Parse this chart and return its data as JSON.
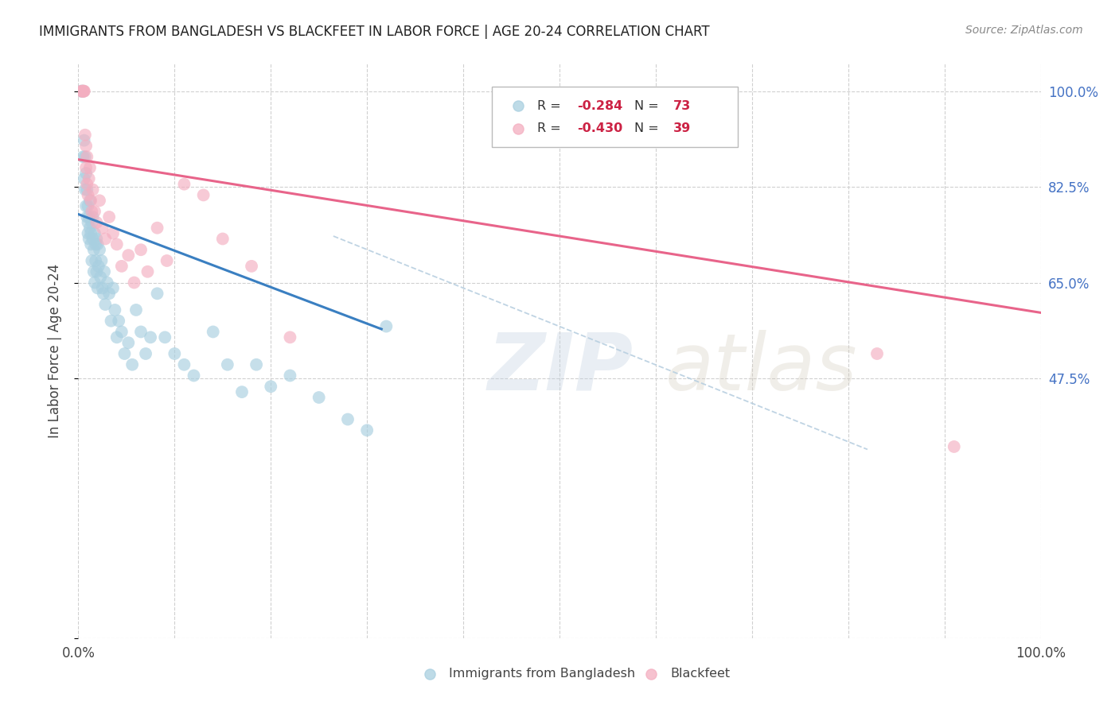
{
  "title": "IMMIGRANTS FROM BANGLADESH VS BLACKFEET IN LABOR FORCE | AGE 20-24 CORRELATION CHART",
  "source": "Source: ZipAtlas.com",
  "ylabel": "In Labor Force | Age 20-24",
  "xlim": [
    0.0,
    1.0
  ],
  "ylim": [
    0.0,
    1.05
  ],
  "ytick_positions": [
    0.0,
    0.475,
    0.65,
    0.825,
    1.0
  ],
  "ytick_labels": [
    "",
    "47.5%",
    "65.0%",
    "82.5%",
    "100.0%"
  ],
  "xtick_positions": [
    0.0,
    0.1,
    0.2,
    0.3,
    0.4,
    0.5,
    0.6,
    0.7,
    0.8,
    0.9,
    1.0
  ],
  "xtick_labels": [
    "0.0%",
    "",
    "",
    "",
    "",
    "",
    "",
    "",
    "",
    "",
    "100.0%"
  ],
  "legend_r1": "-0.284",
  "legend_n1": "73",
  "legend_r2": "-0.430",
  "legend_n2": "39",
  "color_blue": "#a8cfe0",
  "color_pink": "#f4aec0",
  "color_blue_line": "#3a7fc1",
  "color_pink_line": "#e8648a",
  "color_dashed": "#b8cfe0",
  "background_color": "#ffffff",
  "grid_color": "#d0d0d0",
  "blue_line_x0": 0.0,
  "blue_line_y0": 0.775,
  "blue_line_x1": 0.315,
  "blue_line_y1": 0.565,
  "pink_line_x0": 0.0,
  "pink_line_y0": 0.875,
  "pink_line_x1": 1.0,
  "pink_line_y1": 0.595,
  "dash_line_x0": 0.265,
  "dash_line_y0": 0.735,
  "dash_line_x1": 0.82,
  "dash_line_y1": 0.345,
  "bangladesh_x": [
    0.003,
    0.004,
    0.005,
    0.005,
    0.006,
    0.006,
    0.007,
    0.007,
    0.008,
    0.008,
    0.009,
    0.009,
    0.01,
    0.01,
    0.01,
    0.011,
    0.011,
    0.012,
    0.012,
    0.013,
    0.013,
    0.014,
    0.014,
    0.015,
    0.015,
    0.016,
    0.016,
    0.017,
    0.017,
    0.018,
    0.018,
    0.019,
    0.019,
    0.02,
    0.02,
    0.021,
    0.022,
    0.023,
    0.024,
    0.025,
    0.026,
    0.027,
    0.028,
    0.03,
    0.032,
    0.034,
    0.036,
    0.038,
    0.04,
    0.042,
    0.045,
    0.048,
    0.052,
    0.056,
    0.06,
    0.065,
    0.07,
    0.075,
    0.082,
    0.09,
    0.1,
    0.11,
    0.12,
    0.14,
    0.155,
    0.17,
    0.185,
    0.2,
    0.22,
    0.25,
    0.28,
    0.3,
    0.32
  ],
  "bangladesh_y": [
    1.0,
    1.0,
    1.0,
    0.88,
    0.91,
    0.84,
    0.88,
    0.82,
    0.85,
    0.79,
    0.82,
    0.77,
    0.79,
    0.76,
    0.74,
    0.77,
    0.73,
    0.75,
    0.8,
    0.74,
    0.72,
    0.76,
    0.69,
    0.73,
    0.77,
    0.71,
    0.67,
    0.74,
    0.65,
    0.72,
    0.69,
    0.67,
    0.73,
    0.72,
    0.64,
    0.68,
    0.71,
    0.66,
    0.69,
    0.64,
    0.63,
    0.67,
    0.61,
    0.65,
    0.63,
    0.58,
    0.64,
    0.6,
    0.55,
    0.58,
    0.56,
    0.52,
    0.54,
    0.5,
    0.6,
    0.56,
    0.52,
    0.55,
    0.63,
    0.55,
    0.52,
    0.5,
    0.48,
    0.56,
    0.5,
    0.45,
    0.5,
    0.46,
    0.48,
    0.44,
    0.4,
    0.38,
    0.57
  ],
  "blackfeet_x": [
    0.003,
    0.004,
    0.005,
    0.005,
    0.006,
    0.006,
    0.007,
    0.008,
    0.008,
    0.009,
    0.009,
    0.01,
    0.011,
    0.012,
    0.013,
    0.014,
    0.015,
    0.017,
    0.019,
    0.022,
    0.025,
    0.028,
    0.032,
    0.036,
    0.04,
    0.045,
    0.052,
    0.058,
    0.065,
    0.072,
    0.082,
    0.092,
    0.11,
    0.13,
    0.15,
    0.18,
    0.22,
    0.83,
    0.91
  ],
  "blackfeet_y": [
    1.0,
    1.0,
    1.0,
    1.0,
    1.0,
    1.0,
    0.92,
    0.9,
    0.86,
    0.88,
    0.83,
    0.81,
    0.84,
    0.86,
    0.8,
    0.78,
    0.82,
    0.78,
    0.76,
    0.8,
    0.75,
    0.73,
    0.77,
    0.74,
    0.72,
    0.68,
    0.7,
    0.65,
    0.71,
    0.67,
    0.75,
    0.69,
    0.83,
    0.81,
    0.73,
    0.68,
    0.55,
    0.52,
    0.35
  ]
}
